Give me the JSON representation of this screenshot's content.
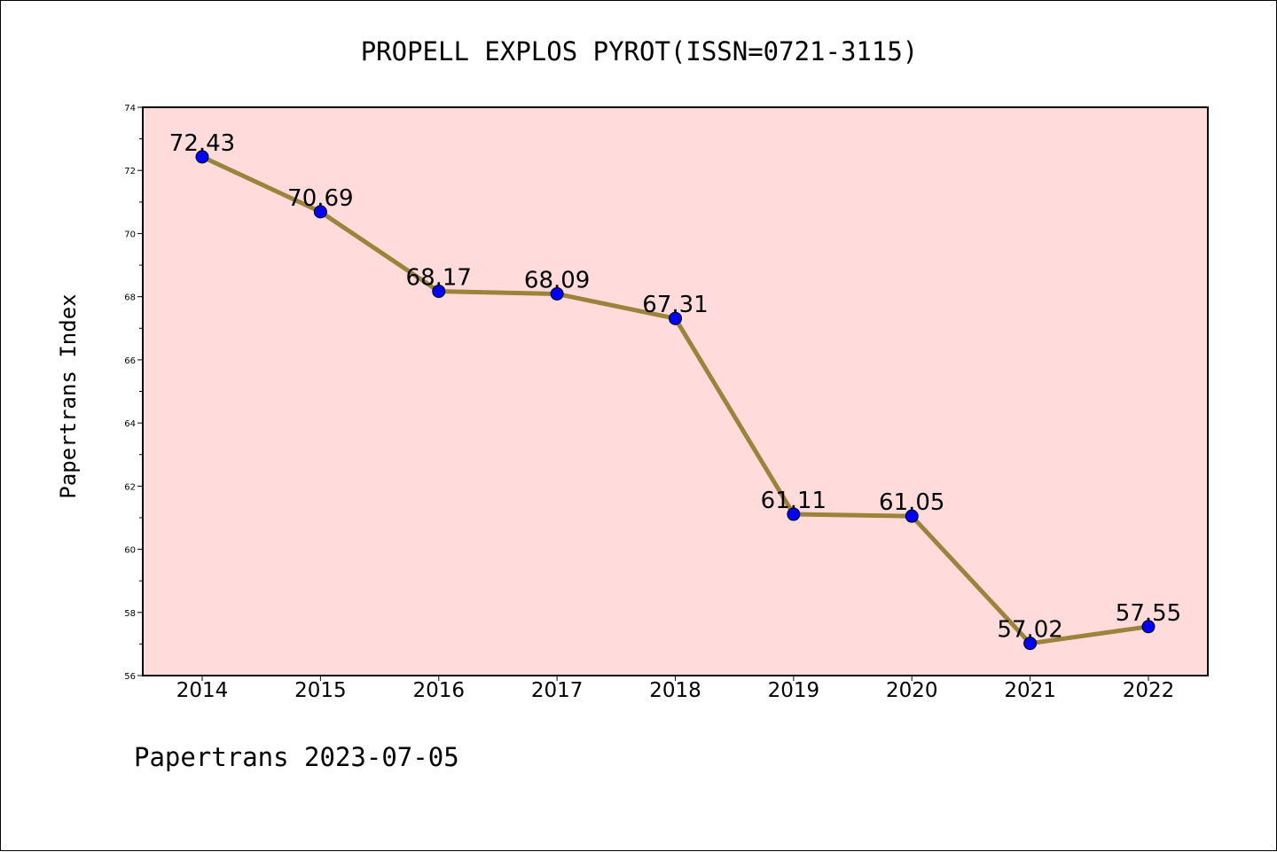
{
  "chart_data": {
    "type": "line",
    "title": "PROPELL EXPLOS PYROT(ISSN=0721-3115)",
    "xlabel": "",
    "ylabel": "Papertrans Index",
    "categories": [
      "2014",
      "2015",
      "2016",
      "2017",
      "2018",
      "2019",
      "2020",
      "2021",
      "2022"
    ],
    "series": [
      {
        "values": [
          72.43,
          70.69,
          68.17,
          68.09,
          67.31,
          61.11,
          61.05,
          57.02,
          57.55
        ],
        "data_labels": [
          "72.43",
          "70.69",
          "68.17",
          "68.09",
          "67.31",
          "61.11",
          "61.05",
          "57.02",
          "57.55"
        ]
      }
    ],
    "ylim": [
      56,
      74
    ],
    "y_ticks": [
      "56",
      "58",
      "60",
      "62",
      "64",
      "66",
      "68",
      "70",
      "72",
      "74"
    ],
    "grid": false,
    "legend": "none",
    "colors": {
      "plot_background": "#ffdcdb",
      "line": "#9b833a",
      "marker": "#0000ff"
    }
  },
  "footer": {
    "text": "Papertrans 2023-07-05"
  }
}
